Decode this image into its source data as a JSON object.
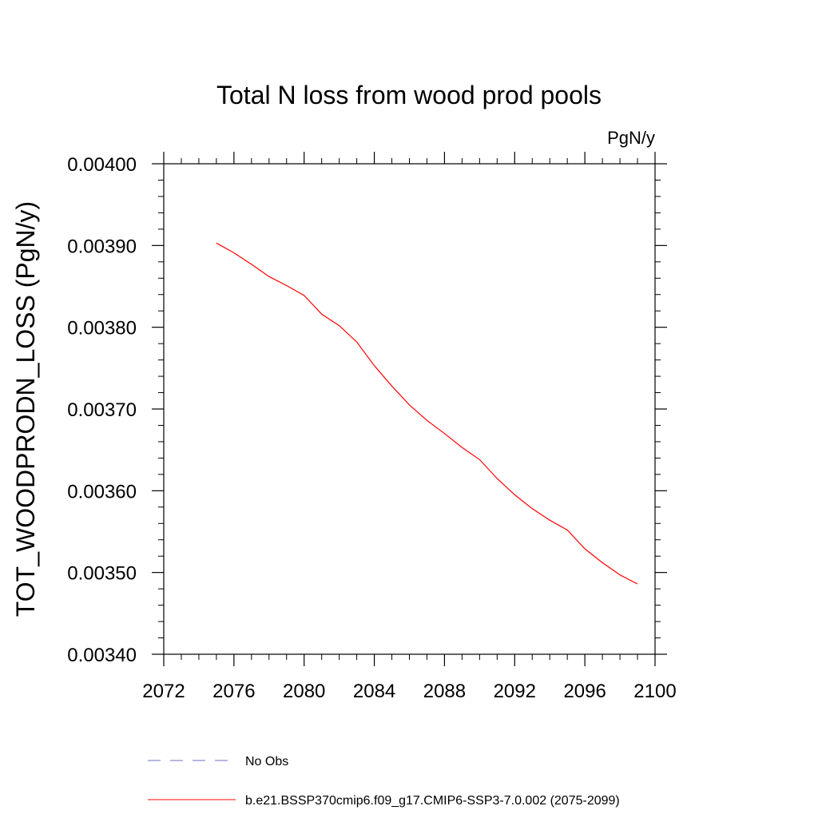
{
  "chart_data": {
    "type": "line",
    "title": "Total N loss from wood prod pools",
    "units_label": "PgN/y",
    "ylabel": "TOT_WOODPRODN_LOSS  (PgN/y)",
    "xlabel": "",
    "xlim": [
      2072,
      2100
    ],
    "ylim": [
      0.0034,
      0.004
    ],
    "x_ticks": [
      2072,
      2076,
      2080,
      2084,
      2088,
      2092,
      2096,
      2100
    ],
    "x_tick_labels": [
      "2072",
      "2076",
      "2080",
      "2084",
      "2088",
      "2092",
      "2096",
      "2100"
    ],
    "y_ticks": [
      0.0034,
      0.0035,
      0.0036,
      0.0037,
      0.0038,
      0.0039,
      0.004
    ],
    "y_tick_labels": [
      "0.00340",
      "0.00350",
      "0.00360",
      "0.00370",
      "0.00380",
      "0.00390",
      "0.00400"
    ],
    "grid": false,
    "legend_placement": "bottom",
    "legend": [
      {
        "label": "No Obs",
        "color": "#6c6cc8",
        "style": "dashed"
      },
      {
        "label": "b.e21.BSSP370cmip6.f09_g17.CMIP6-SSP3-7.0.002 (2075-2099)",
        "color": "#ff0000",
        "style": "solid"
      }
    ],
    "series": [
      {
        "color": "#ff0000",
        "x": [
          2075,
          2076,
          2077,
          2078,
          2079,
          2080,
          2081,
          2082,
          2083,
          2084,
          2085,
          2086,
          2087,
          2088,
          2089,
          2090,
          2091,
          2092,
          2093,
          2094,
          2095,
          2096,
          2097,
          2098,
          2099
        ],
        "values": [
          0.003903,
          0.003891,
          0.003877,
          0.003862,
          0.003851,
          0.003839,
          0.003816,
          0.003802,
          0.003782,
          0.003753,
          0.003728,
          0.003705,
          0.003686,
          0.00367,
          0.003653,
          0.003638,
          0.003615,
          0.003595,
          0.003578,
          0.003564,
          0.003552,
          0.003529,
          0.003512,
          0.003497,
          0.003486
        ]
      }
    ]
  }
}
